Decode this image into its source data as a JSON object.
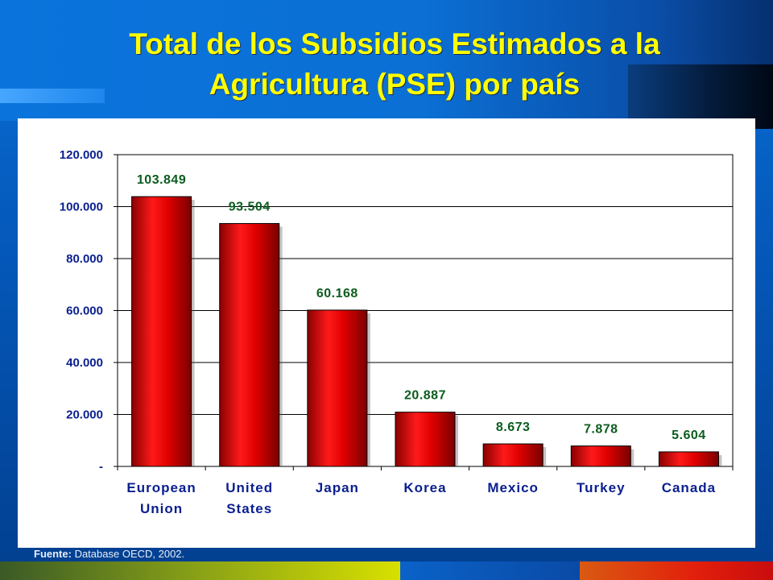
{
  "slide": {
    "title": "Total de los Subsidios Estimados a la Agricultura (PSE) por país",
    "title_lines": [
      "Total de los Subsidios Estimados a la",
      "Agricultura (PSE) por país"
    ],
    "source_label": "Fuente:",
    "source_text": " Database OECD, 2002."
  },
  "colors": {
    "title": "#ffff00",
    "bar": "#e00000",
    "bar_dark": "#7a0000",
    "tick_text": "#0a1f8f",
    "data_label": "#0b5c1e"
  },
  "chart_data": {
    "type": "bar",
    "title": "",
    "xlabel": "",
    "ylabel": "",
    "categories": [
      [
        "European",
        "Union"
      ],
      [
        "United",
        "States"
      ],
      [
        "Japan"
      ],
      [
        "Korea"
      ],
      [
        "Mexico"
      ],
      [
        "Turkey"
      ],
      [
        "Canada"
      ]
    ],
    "values": [
      103849,
      93504,
      60168,
      20887,
      8673,
      7878,
      5604
    ],
    "value_labels": [
      "103.849",
      "93.504",
      "60.168",
      "20.887",
      "8.673",
      "7.878",
      "5.604"
    ],
    "ylim": [
      0,
      120000
    ],
    "yticks": [
      0,
      20000,
      40000,
      60000,
      80000,
      100000,
      120000
    ],
    "ytick_labels": [
      "-",
      "20.000",
      "40.000",
      "60.000",
      "80.000",
      "100.000",
      "120.000"
    ],
    "grid": true,
    "legend": "none"
  }
}
